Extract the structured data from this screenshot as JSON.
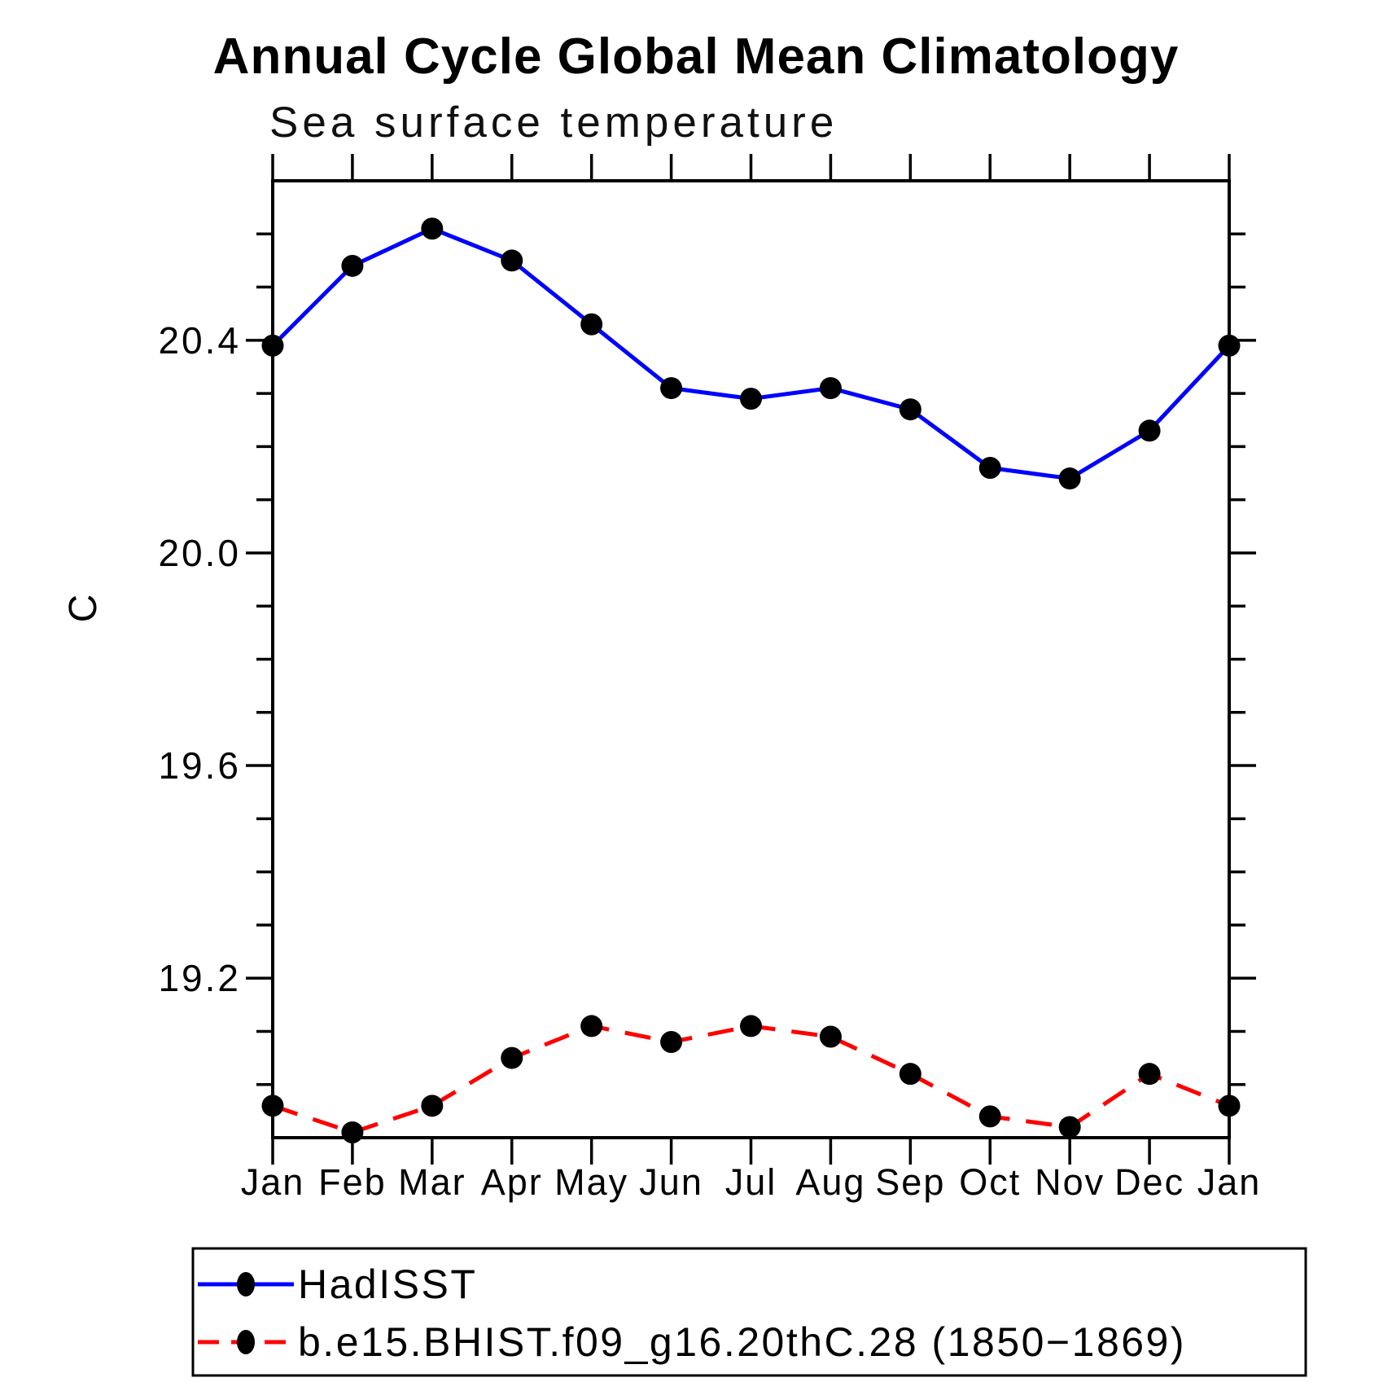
{
  "page": {
    "background": "#ffffff",
    "text_color": "#000000"
  },
  "chart_data": {
    "type": "line",
    "title": "Annual Cycle Global Mean Climatology",
    "subtitle": "Sea surface temperature",
    "ylabel": "C",
    "xlabel": "",
    "categories": [
      "Jan",
      "Feb",
      "Mar",
      "Apr",
      "May",
      "Jun",
      "Jul",
      "Aug",
      "Sep",
      "Oct",
      "Nov",
      "Dec",
      "Jan"
    ],
    "ylim": [
      18.9,
      20.7
    ],
    "ytick_labels": [
      "19.2",
      "19.6",
      "20.0",
      "20.4"
    ],
    "ytick_major_values": [
      19.2,
      19.6,
      20.0,
      20.4
    ],
    "ytick_minor_step": 0.1,
    "grid": false,
    "frame": "box-with-outward-ticks",
    "legend_position": "bottom-left-box",
    "series": [
      {
        "name": "HadISST",
        "color": "#0000ff",
        "line_style": "solid",
        "marker": "filled-circle",
        "marker_color": "#000000",
        "values": [
          20.39,
          20.54,
          20.61,
          20.55,
          20.43,
          20.31,
          20.29,
          20.31,
          20.27,
          20.16,
          20.14,
          20.23,
          20.39
        ]
      },
      {
        "name": "b.e15.BHIST.f09_g16.20thC.28 (1850−1869)",
        "color": "#ff0000",
        "line_style": "dashed",
        "marker": "filled-circle",
        "marker_color": "#000000",
        "values": [
          18.96,
          18.91,
          18.96,
          19.05,
          19.11,
          19.08,
          19.11,
          19.09,
          19.02,
          18.94,
          18.92,
          19.02,
          18.96
        ]
      }
    ]
  }
}
